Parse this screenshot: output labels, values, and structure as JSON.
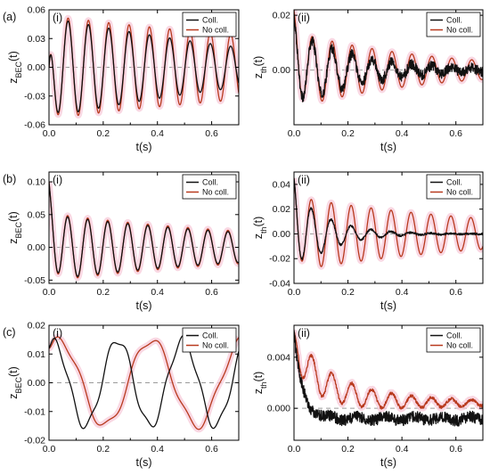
{
  "colors": {
    "coll": "#111111",
    "nocoll": "#b83a1e",
    "glow": "#f7c7d7",
    "zero_line": "#9a9a9a"
  },
  "chart_data": [
    {
      "type": "line",
      "row_tag": "(a)",
      "panel_tag": "(i)",
      "ylabel": "z",
      "ylabel_sub": "BEC",
      "ylabel_tail": "(t)",
      "xlabel": "t(s)",
      "xlim": [
        0,
        0.7
      ],
      "ylim": [
        -0.06,
        0.06
      ],
      "xticks": [
        0.0,
        0.2,
        0.4,
        0.6
      ],
      "xtick_labels": [
        "0.0",
        "0.2",
        "0.4",
        "0.6"
      ],
      "yticks": [
        -0.06,
        -0.03,
        0.0,
        0.03,
        0.06
      ],
      "ytick_labels": [
        "-0.06",
        "-0.03",
        "0.00",
        "0.03",
        "0.06"
      ],
      "legend": [
        "Coll.",
        "No coll."
      ],
      "legend_position": "top-right",
      "series": [
        {
          "name": "Coll.",
          "y0": 0.0,
          "amp": 0.052,
          "omega": 83.8,
          "phase": 1.95,
          "tau": 1.0,
          "tau2": 0.6,
          "offset": 0.0,
          "noise": 0.0
        },
        {
          "name": "No coll.",
          "y0": 0.0,
          "amp": 0.054,
          "omega": 83.8,
          "phase": 1.95,
          "tau": 1.5,
          "offset": 0.0,
          "noise": 0.0
        }
      ]
    },
    {
      "type": "line",
      "row_tag": "",
      "panel_tag": "(ii)",
      "ylabel": "z",
      "ylabel_sub": "th",
      "ylabel_tail": "(t)",
      "xlabel": "t(s)",
      "xlim": [
        0,
        0.7
      ],
      "ylim": [
        -0.02,
        0.022
      ],
      "xticks": [
        0.0,
        0.2,
        0.4,
        0.6
      ],
      "xtick_labels": [
        "0.0",
        "0.2",
        "0.4",
        "0.6"
      ],
      "yticks": [
        0.0,
        0.02
      ],
      "ytick_labels": [
        "0.00",
        "0.02"
      ],
      "legend": [
        "Coll.",
        "No coll."
      ],
      "legend_position": "top-right",
      "series": [
        {
          "name": "Coll.",
          "y0": 0.02,
          "amp": 0.014,
          "omega": 85.0,
          "phase": 2.1,
          "tau": 0.25,
          "tau2": 0.45,
          "offset": 0.0,
          "noise": 0.0018
        },
        {
          "name": "No coll.",
          "y0": 0.022,
          "amp": 0.014,
          "omega": 85.0,
          "phase": 2.1,
          "tau": 0.5,
          "offset": 0.0,
          "noise": 0.0
        }
      ]
    },
    {
      "type": "line",
      "row_tag": "(b)",
      "panel_tag": "(i)",
      "ylabel": "z",
      "ylabel_sub": "BEC",
      "ylabel_tail": "(t)",
      "xlabel": "t(s)",
      "xlim": [
        0,
        0.7
      ],
      "ylim": [
        -0.055,
        0.115
      ],
      "xticks": [
        0.0,
        0.2,
        0.4,
        0.6
      ],
      "xtick_labels": [
        "0.0",
        "0.2",
        "0.4",
        "0.6"
      ],
      "yticks": [
        -0.05,
        0.0,
        0.05,
        0.1
      ],
      "ytick_labels": [
        "-0.05",
        "0.00",
        "0.05",
        "0.10"
      ],
      "legend": [
        "Coll.",
        "No coll."
      ],
      "legend_position": "top-right",
      "series": [
        {
          "name": "Coll.",
          "y0": 0.1,
          "amp": 0.05,
          "omega": 85.0,
          "phase": 2.0,
          "tau": 0.9,
          "offset": 0.0,
          "noise": 0.0
        },
        {
          "name": "No coll.",
          "y0": 0.1,
          "amp": 0.052,
          "omega": 85.0,
          "phase": 2.0,
          "tau": 0.95,
          "offset": 0.0,
          "noise": 0.0
        }
      ]
    },
    {
      "type": "line",
      "row_tag": "",
      "panel_tag": "(ii)",
      "ylabel": "z",
      "ylabel_sub": "th",
      "ylabel_tail": "(t)",
      "xlabel": "t(s)",
      "xlim": [
        0,
        0.7
      ],
      "ylim": [
        -0.04,
        0.05
      ],
      "xticks": [
        0.0,
        0.2,
        0.4,
        0.6
      ],
      "xtick_labels": [
        "0.0",
        "0.2",
        "0.4",
        "0.6"
      ],
      "yticks": [
        -0.04,
        -0.02,
        0.0,
        0.02,
        0.04
      ],
      "ytick_labels": [
        "-0.04",
        "-0.02",
        "0.00",
        "0.02",
        "0.04"
      ],
      "legend": [
        "Coll.",
        "No coll."
      ],
      "legend_position": "top-right",
      "series": [
        {
          "name": "Coll.",
          "y0": 0.045,
          "amp": 0.034,
          "omega": 85.0,
          "phase": 2.4,
          "tau": 0.13,
          "tau2": 0.5,
          "offset": 0.0,
          "noise": 0.0008,
          "floor": 0.01
        },
        {
          "name": "No coll.",
          "y0": 0.045,
          "amp": 0.03,
          "omega": 85.0,
          "phase": 2.4,
          "tau": 0.8,
          "offset": 0.0,
          "noise": 0.0
        }
      ]
    },
    {
      "type": "line",
      "row_tag": "(c)",
      "panel_tag": "(i)",
      "ylabel": "z",
      "ylabel_sub": "BEC",
      "ylabel_tail": "(t)",
      "xlabel": "t(s)",
      "xlim": [
        0,
        0.7
      ],
      "ylim": [
        -0.02,
        0.02
      ],
      "xticks": [
        0.0,
        0.2,
        0.4,
        0.6
      ],
      "xtick_labels": [
        "0.0",
        "0.2",
        "0.4",
        "0.6"
      ],
      "yticks": [
        -0.02,
        -0.01,
        0.0,
        0.01,
        0.02
      ],
      "ytick_labels": [
        "-0.02",
        "-0.01",
        "0.00",
        "0.01",
        "0.02"
      ],
      "legend": [
        "Coll.",
        "No coll."
      ],
      "legend_position": "top-right",
      "series": [
        {
          "name": "Coll.",
          "y0": 0.012,
          "amp": 0.015,
          "omega": 26.2,
          "phase": 1.2,
          "tau": 100,
          "offset": 0.0,
          "noise": 0.0,
          "ripple": 0.0015
        },
        {
          "name": "No coll.",
          "y0": 0.012,
          "amp": 0.015,
          "omega": 18.5,
          "phase": 0.9,
          "tau": 100,
          "offset": 0.0,
          "noise": 0.0,
          "ripple": 0.0015
        }
      ]
    },
    {
      "type": "line",
      "row_tag": "",
      "panel_tag": "(ii)",
      "ylabel": "z",
      "ylabel_sub": "th",
      "ylabel_tail": "(t)",
      "xlabel": "t(s)",
      "xlim": [
        0,
        0.7
      ],
      "ylim": [
        -0.0025,
        0.0065
      ],
      "xticks": [
        0.0,
        0.2,
        0.4,
        0.6
      ],
      "xtick_labels": [
        "0.0",
        "0.2",
        "0.4",
        "0.6"
      ],
      "yticks": [
        0.0,
        0.004
      ],
      "ytick_labels": [
        "0.000",
        "0.004"
      ],
      "legend": [
        "Coll.",
        "No coll."
      ],
      "legend_position": "top-right",
      "series": [
        {
          "name": "Coll.",
          "y0": 0.006,
          "amp": 0.0005,
          "omega": 60.0,
          "phase": 0.0,
          "tau": 1.0,
          "offset": -0.0008,
          "noise": 0.00045,
          "drop": 0.03
        },
        {
          "name": "No coll.",
          "y0": 0.006,
          "amp": 0.0016,
          "omega": 85.0,
          "phase": 2.2,
          "tau": 0.35,
          "offset": 0.0004,
          "noise": 0.00012,
          "offset_tau": 0.12,
          "offset_start": 0.0045
        }
      ]
    }
  ]
}
